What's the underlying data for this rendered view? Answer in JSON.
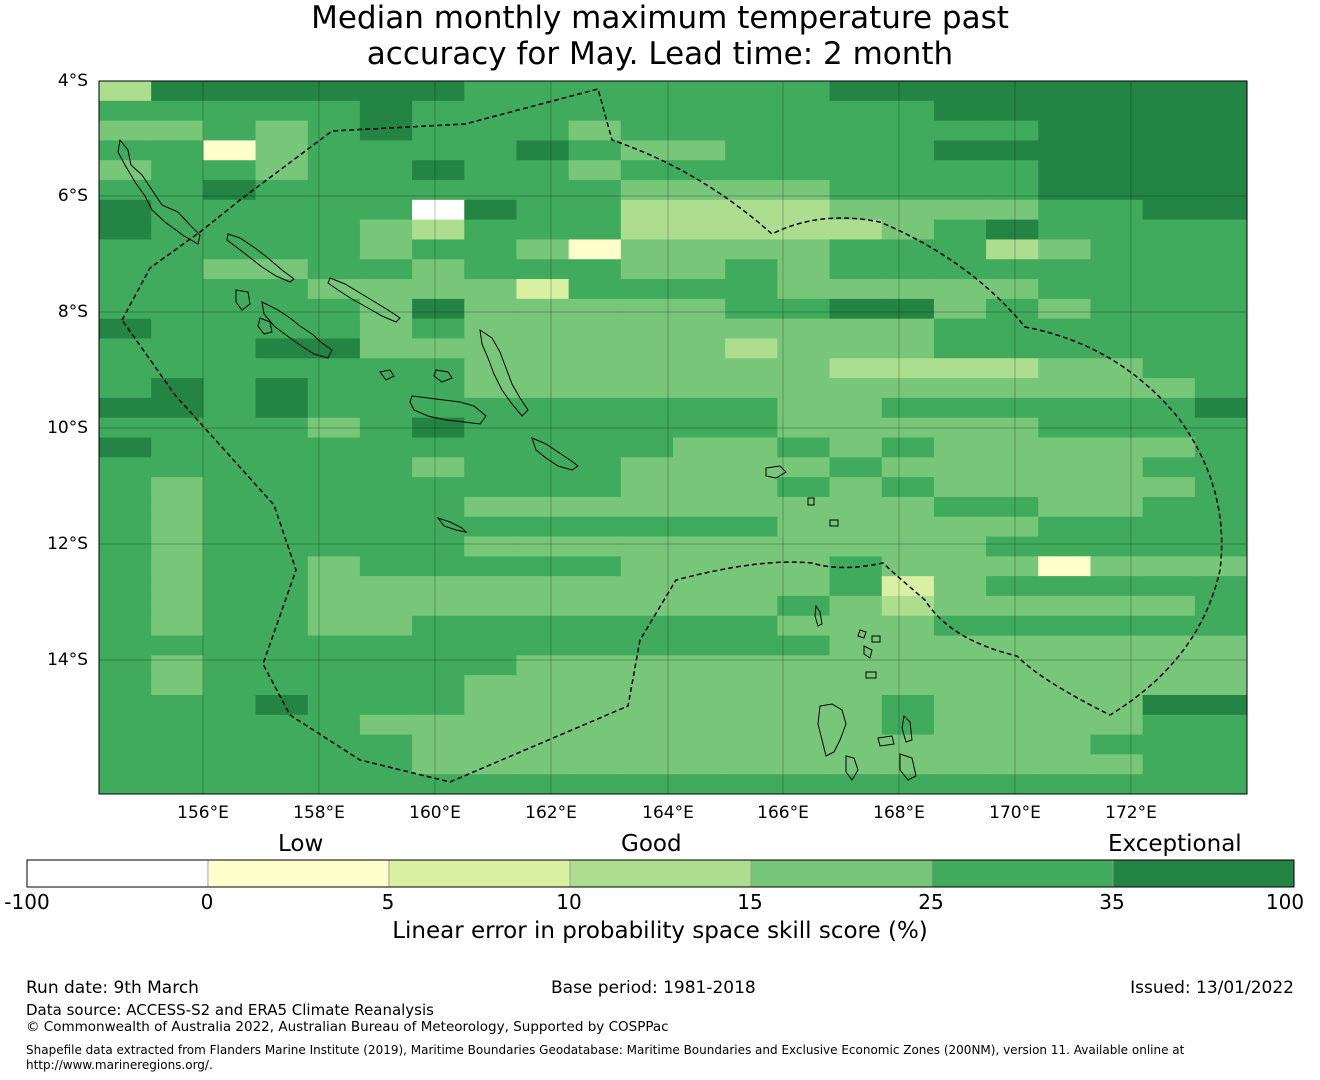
{
  "title": {
    "line1": "Median monthly maximum temperature past",
    "line2": "accuracy for May. Lead time: 2 month"
  },
  "map": {
    "lat_labels": [
      "4°S",
      "6°S",
      "8°S",
      "10°S",
      "12°S",
      "14°S"
    ],
    "lon_labels": [
      "156°E",
      "158°E",
      "160°E",
      "162°E",
      "164°E",
      "166°E",
      "168°E",
      "170°E",
      "172°E"
    ],
    "colors": [
      "#ffffff",
      "#ffffcc",
      "#d9f0a3",
      "#addd8e",
      "#78c679",
      "#41ab5d",
      "#238443"
    ],
    "grid": [
      "3666666555555566666666",
      "5555565555555555666666",
      "4454565554555555556666",
      "5514555565445555666666",
      "4554556554555555556666",
      "5565555555444455556666",
      "6555550655333344445566",
      "6555543555333334565555",
      "5555545541444455534555",
      "5544554555445455555555",
      "5555444425555444445555",
      "5555546444445566454555",
      "6555545444444444555555",
      "5556644444443444555555",
      "5555555444444433334455",
      "5656555444444444444445",
      "6656555555555445555556",
      "5555456555555444445555",
      "6555555555544545444445",
      "5555554555444454444455",
      "5455555555444545444445",
      "5455555444444444554455",
      "5455555555555444445555",
      "5455555444444444455555",
      "5455455555444454441444",
      "5455444444444452455555",
      "5455444444444543444445",
      "5455445555555444555555",
      "5555555555555544444444",
      "5455555544444444444444",
      "5455555444444444444444",
      "5556555444444445444466",
      "5555544444444445444455",
      "5555554444444444444555",
      "5555554444444444444455",
      "5555555555555555555555"
    ]
  },
  "legend": {
    "category_labels": [
      "Low",
      "Good",
      "Exceptional"
    ],
    "tick_labels": [
      "-100",
      "0",
      "5",
      "10",
      "15",
      "25",
      "35",
      "100"
    ],
    "colors": [
      "#ffffff",
      "#ffffcc",
      "#d9f0a3",
      "#addd8e",
      "#78c679",
      "#41ab5d",
      "#238443"
    ],
    "title": "Linear error in probability space skill score (%)"
  },
  "footer": {
    "run_date": "Run date: 9th March",
    "base_period": "Base period: 1981-2018",
    "issued": "Issued: 13/01/2022",
    "data_source": "Data source: ACCESS-S2 and ERA5 Climate Reanalysis",
    "copyright": "© Commonwealth of Australia 2022, Australian Bureau of Meteorology, Supported by COSPPac",
    "shapefile_line1": "Shapefile data extracted from Flanders Marine Institute (2019), Maritime Boundaries Geodatabase: Maritime Boundaries and Exclusive Economic Zones (200NM), version 11. Available online at",
    "shapefile_line2": "http://www.marineregions.org/."
  }
}
